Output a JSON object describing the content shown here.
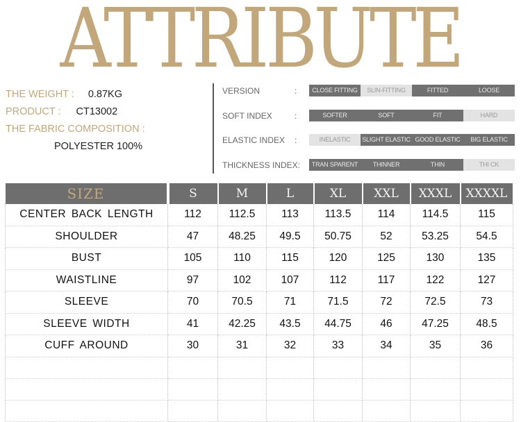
{
  "banner": {
    "title": "ATTRIBUTE"
  },
  "info": {
    "weight_label": "THE WEIGHT :",
    "weight_value": "0.87KG",
    "product_label": "PRODUCT :",
    "product_value": "CT13002",
    "fabric_label": "THE FABRIC COMPOSITION :",
    "fabric_value": "POLYESTER 100%"
  },
  "attributes": [
    {
      "label": "VERSION",
      "colon": ":",
      "options": [
        {
          "text": "CLOSE FITTING",
          "selected": true
        },
        {
          "text": "SLIN-FITTING",
          "selected": false
        },
        {
          "text": "FITTED",
          "selected": true
        },
        {
          "text": "LOOSE",
          "selected": true
        }
      ]
    },
    {
      "label": "SOFT INDEX",
      "colon": ":",
      "options": [
        {
          "text": "SOFTER",
          "selected": true
        },
        {
          "text": "SOFT",
          "selected": true
        },
        {
          "text": "FIT",
          "selected": true
        },
        {
          "text": "HARD",
          "selected": false
        }
      ]
    },
    {
      "label": "ELASTIC INDEX",
      "colon": ":",
      "options": [
        {
          "text": "INELASTIC",
          "selected": false
        },
        {
          "text": "SLIGHT ELASTIC",
          "selected": true
        },
        {
          "text": "GOOD ELASTIC",
          "selected": true
        },
        {
          "text": "BIG ELASTIC",
          "selected": true
        }
      ]
    },
    {
      "label": "THICKNESS INDEX:",
      "colon": "",
      "options": [
        {
          "text": "TRAN SPARENT",
          "selected": true
        },
        {
          "text": "THINNER",
          "selected": true
        },
        {
          "text": "THIN",
          "selected": true
        },
        {
          "text": "THI CK",
          "selected": false
        }
      ]
    }
  ],
  "size_table": {
    "header_label": "SIZE",
    "sizes": [
      "S",
      "M",
      "L",
      "XL",
      "XXL",
      "XXXL",
      "XXXXL"
    ],
    "rows": [
      {
        "label": "CENTER BACK LENGTH",
        "values": [
          "112",
          "112.5",
          "113",
          "113.5",
          "114",
          "114.5",
          "115"
        ]
      },
      {
        "label": "SHOULDER",
        "values": [
          "47",
          "48.25",
          "49.5",
          "50.75",
          "52",
          "53.25",
          "54.5"
        ]
      },
      {
        "label": "BUST",
        "values": [
          "105",
          "110",
          "115",
          "120",
          "125",
          "130",
          "135"
        ]
      },
      {
        "label": "WAISTLINE",
        "values": [
          "97",
          "102",
          "107",
          "112",
          "117",
          "122",
          "127"
        ]
      },
      {
        "label": "SLEEVE",
        "values": [
          "70",
          "70.5",
          "71",
          "71.5",
          "72",
          "72.5",
          "73"
        ]
      },
      {
        "label": "SLEEVE WIDTH",
        "values": [
          "41",
          "42.25",
          "43.5",
          "44.75",
          "46",
          "47.25",
          "48.5"
        ]
      },
      {
        "label": "CUFF AROUND",
        "values": [
          "30",
          "31",
          "32",
          "33",
          "34",
          "35",
          "36"
        ]
      }
    ],
    "empty_rows": 3
  },
  "colors": {
    "gold": "#c2a77a",
    "dark_segment": "#707070",
    "light_segment": "#e3e3e3",
    "table_header": "#6e6e6e"
  }
}
